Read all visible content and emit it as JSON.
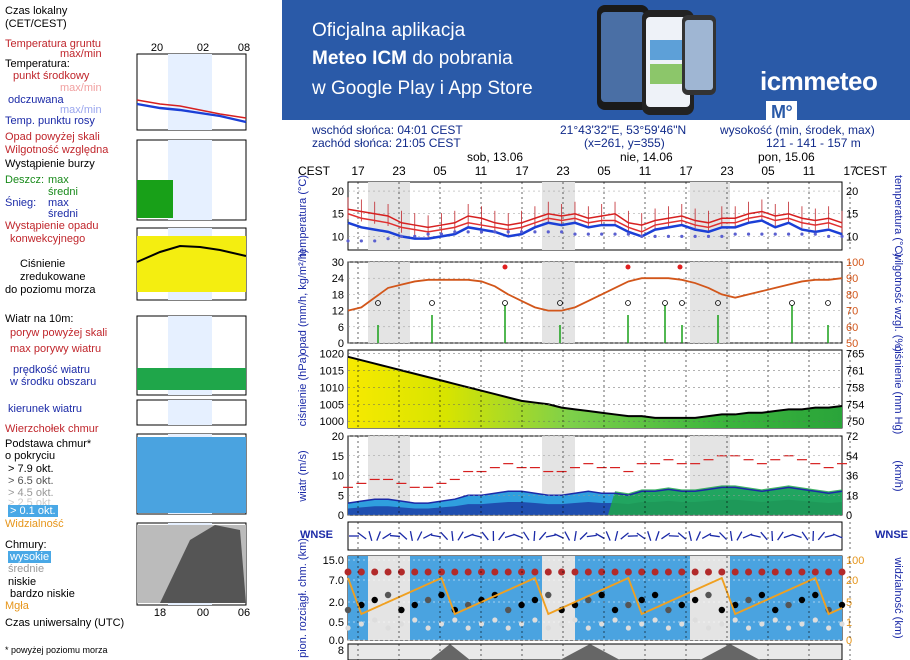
{
  "legend": {
    "time_local": "Czas lokalny\n(CET/CEST)",
    "time_local_1": "Czas lokalny",
    "time_local_2": "(CET/CEST)",
    "ground_temp": "Temperatura gruntu",
    "ground_temp_mm": "max/min",
    "temperature": "Temperatura:",
    "mid_point": "punkt środkowy",
    "max_min_faint": "max/min",
    "felt": "odczuwana",
    "felt_mm": "max/min",
    "dew": "Temp. punktu rosy",
    "precip_above": "Opad powyżej skali",
    "humidity": "Wilgotność względna",
    "storm": "Wystąpienie burzy",
    "rain": "Deszcz:",
    "rain_max": "max",
    "rain_avg": "średni",
    "snow": "Śnieg:",
    "snow_max": "max",
    "snow_avg": "średni",
    "precip_occ_1": "Wystąpienie opadu",
    "precip_occ_2": "konwekcyjnego",
    "pressure_1": "Ciśnienie",
    "pressure_2": "zredukowane",
    "pressure_3": "do poziomu morza",
    "wind": "Wiatr na 10m:",
    "gust_above": "poryw powyżej skali",
    "gust_max": "max porywy wiatru",
    "wind_speed_1": "prędkość wiatru",
    "wind_speed_2": "w środku obszaru",
    "wind_dir": "kierunek wiatru",
    "cloud_top": "Wierzchołek chmur",
    "cloud_base_1": "Podstawa chmur*",
    "cloud_base_2": "o pokryciu",
    "okt": [
      "> 7.9 okt.",
      "> 6.5 okt.",
      "> 4.5 okt.",
      "> 2.5 okt.",
      "> 0.1 okt."
    ],
    "visibility": "Widzialność",
    "clouds": "Chmury:",
    "high": "wysokie",
    "mid": "średnie",
    "low": "niskie",
    "very_low": "bardzo niskie",
    "fog": "Mgła",
    "utc": "Czas uniwersalny (UTC)",
    "footnote": "* powyżej poziomu morza",
    "legend_times_top": [
      "20",
      "02",
      "08"
    ],
    "legend_times_bottom": [
      "18",
      "00",
      "06"
    ]
  },
  "banner": {
    "line1": "Oficjalna aplikacja",
    "line2_bold": "Meteo ICM",
    "line2_rest": " do pobrania",
    "line3": "w Google Play i App Store",
    "logo": "icmmeteo",
    "logo_badge": "M°"
  },
  "info": {
    "sunrise": "wschód słońca: 04:01 CEST",
    "sunset": "zachód słońca: 21:05 CEST",
    "coords": "21°43'32\"E, 53°59'46\"N",
    "grid": "(x=261, y=355)",
    "elevation_label": "wysokość (min, środek, max)",
    "elevation": "121 - 141 - 157 m"
  },
  "chart_data": {
    "type": "line",
    "timezone_label": "CEST",
    "days": [
      "sob, 13.06",
      "nie, 14.06",
      "pon, 15.06"
    ],
    "hours": [
      "17",
      "23",
      "05",
      "11",
      "17",
      "23",
      "05",
      "11",
      "17",
      "23",
      "05",
      "11",
      "17"
    ],
    "temperature": {
      "ylabel": "temperatura (°C)",
      "ylim": [
        7,
        22
      ],
      "ticks": [
        10,
        15,
        20
      ],
      "series": [
        {
          "name": "max",
          "values": [
            16,
            15.5,
            15,
            14.5,
            13,
            12.5,
            12,
            12.5,
            13,
            14.5,
            14,
            13,
            12.5,
            13,
            14,
            15,
            14.5,
            15,
            14,
            14.5,
            15,
            13,
            12.5,
            13.5,
            14,
            14.5,
            13.5,
            13,
            14,
            14,
            15,
            15.5,
            14.5,
            15,
            14,
            13.5,
            14,
            13
          ]
        },
        {
          "name": "mid",
          "values": [
            15,
            14,
            13.5,
            13,
            12,
            11.5,
            11,
            11.5,
            12,
            13,
            12.5,
            12,
            11.5,
            12,
            13,
            14,
            13.5,
            14,
            13,
            13.5,
            13.5,
            12,
            11,
            12.5,
            13,
            13.5,
            12.5,
            12,
            13,
            13,
            14,
            14.5,
            13.5,
            14,
            13,
            12.5,
            13,
            12
          ]
        },
        {
          "name": "felt",
          "values": [
            13,
            12,
            11.5,
            11,
            10,
            9.5,
            9.5,
            10,
            10.5,
            12,
            11.5,
            11,
            10,
            10.5,
            12,
            13,
            12.5,
            13,
            12,
            12.5,
            12.5,
            11,
            10,
            11.5,
            12,
            12.5,
            11.5,
            11,
            12,
            12,
            13,
            13.5,
            12,
            13,
            11.5,
            11,
            11.5,
            10.5
          ]
        },
        {
          "name": "dew",
          "values": [
            9,
            9,
            9,
            9.5,
            10,
            10,
            10.5,
            10.5,
            11,
            11,
            11,
            11,
            11,
            11,
            11,
            11,
            11,
            10.5,
            10.5,
            10.5,
            10.5,
            10.5,
            10,
            10,
            10,
            10,
            10,
            10,
            10,
            10.5,
            10.5,
            10.5,
            10.5,
            10.5,
            10.5,
            10.5,
            10,
            10
          ]
        }
      ]
    },
    "precipitation": {
      "ylabel": "opad (mm/h, kg/m²/h)",
      "y2label": "wilgotność wzgl. (%)",
      "ylim": [
        0,
        30
      ],
      "ticks": [
        0,
        6,
        12,
        18,
        24,
        30
      ],
      "humidity_ticks": [
        50,
        60,
        70,
        80,
        90,
        100
      ],
      "humidity": [
        70,
        72,
        78,
        84,
        86,
        88,
        89,
        89,
        89,
        89,
        88,
        85,
        80,
        76,
        72,
        70,
        70,
        72,
        76,
        80,
        84,
        88,
        90,
        90,
        90,
        89,
        87,
        84,
        80,
        78,
        80,
        82,
        84,
        86,
        88,
        89,
        89,
        90
      ]
    },
    "pressure": {
      "ylabel": "ciśnienie (hPa)",
      "y2label": "ciśnienie (mm Hg)",
      "ylim": [
        998,
        1021
      ],
      "ticks": [
        1000,
        1005,
        1010,
        1015,
        1020
      ],
      "mmhg_ticks": [
        750,
        754,
        758,
        761,
        765
      ],
      "values": [
        1019,
        1018,
        1017,
        1016,
        1015,
        1014,
        1013,
        1012,
        1011,
        1010,
        1009,
        1008,
        1007,
        1006,
        1005.5,
        1005,
        1004,
        1003.5,
        1003,
        1002.5,
        1002,
        1001.5,
        1001.5,
        1001,
        1001,
        1001,
        1001,
        1001.5,
        1002,
        1002,
        1002.5,
        1002.5,
        1003,
        1003.5,
        1003.5,
        1004,
        1004,
        1004.5
      ]
    },
    "wind": {
      "ylabel": "wiatr (m/s)",
      "y2label": "(km/h)",
      "ylim": [
        0,
        20
      ],
      "ticks": [
        0,
        5,
        10,
        15,
        20
      ],
      "kmh_ticks": [
        0,
        18,
        36,
        54,
        72
      ],
      "speed": [
        3,
        3.5,
        4,
        4,
        3.5,
        3,
        3,
        3.5,
        4,
        5,
        5,
        5.5,
        6,
        6,
        5.5,
        5,
        5,
        5.5,
        6,
        5.5,
        5.5,
        5,
        6,
        6,
        6.5,
        6,
        6,
        6.5,
        7,
        7,
        6.5,
        6,
        6.5,
        7,
        6.5,
        6,
        5.5,
        6
      ],
      "gust": [
        7,
        8,
        9,
        9,
        8,
        7,
        7,
        8,
        9,
        11,
        11,
        12,
        13,
        12,
        12,
        11,
        11,
        12,
        13,
        12,
        12,
        11,
        13,
        13,
        14,
        13,
        13,
        14,
        15,
        15,
        14,
        13,
        14,
        15,
        14,
        13,
        12,
        13
      ]
    },
    "clouds": {
      "ylabel": "pion. rozciągł. chm. (km)",
      "y2label": "widzialność (km)",
      "ticks": [
        0,
        0.5,
        2.0,
        7.0,
        15.0
      ],
      "vis_ticks": [
        0,
        1,
        5,
        20,
        100
      ]
    }
  }
}
